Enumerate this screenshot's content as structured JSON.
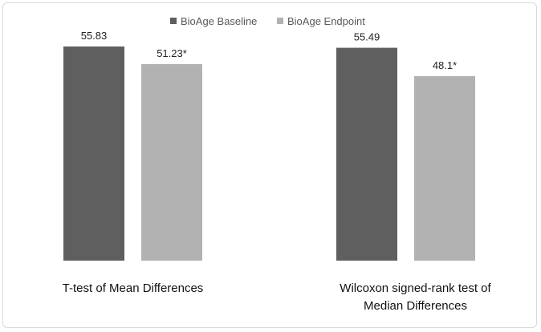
{
  "chart_data": {
    "type": "bar",
    "title": "",
    "xlabel": "",
    "ylabel": "",
    "ylim": [
      0,
      60
    ],
    "grid": false,
    "legend_position": "top",
    "colors": {
      "baseline": "#5f5f5f",
      "endpoint": "#b2b2b2"
    },
    "series": [
      {
        "name": "BioAge Baseline",
        "color": "#5f5f5f",
        "values": [
          55.83,
          55.49
        ],
        "labels": [
          "55.83",
          "55.49"
        ]
      },
      {
        "name": "BioAge Endpoint",
        "color": "#b2b2b2",
        "values": [
          51.23,
          48.1
        ],
        "labels": [
          "51.23*",
          "48.1*"
        ]
      }
    ],
    "categories": [
      {
        "lines": [
          "T-test of Mean Differences"
        ]
      },
      {
        "lines": [
          "Wilcoxon signed-rank test of",
          "Median Differences"
        ]
      }
    ]
  }
}
